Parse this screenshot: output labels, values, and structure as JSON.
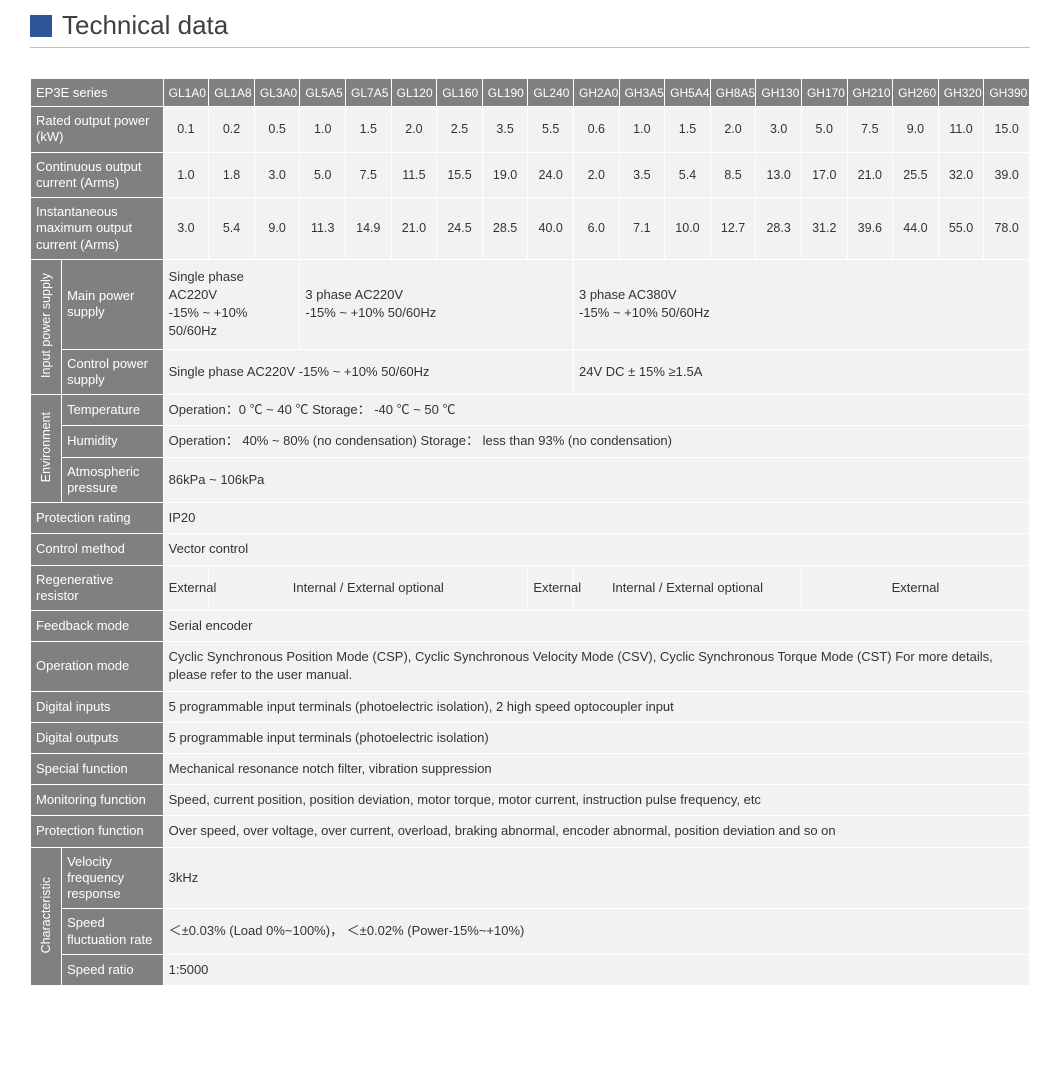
{
  "title": "Technical data",
  "series_label": "EP3E series",
  "models": [
    "GL1A0",
    "GL1A8",
    "GL3A0",
    "GL5A5",
    "GL7A5",
    "GL120",
    "GL160",
    "GL190",
    "GL240",
    "GH2A0",
    "GH3A5",
    "GH5A4",
    "GH8A5",
    "GH130",
    "GH170",
    "GH210",
    "GH260",
    "GH320",
    "GH390"
  ],
  "rows_numeric": [
    {
      "label": "Rated output power (kW)",
      "values": [
        "0.1",
        "0.2",
        "0.5",
        "1.0",
        "1.5",
        "2.0",
        "2.5",
        "3.5",
        "5.5",
        "0.6",
        "1.0",
        "1.5",
        "2.0",
        "3.0",
        "5.0",
        "7.5",
        "9.0",
        "11.0",
        "15.0"
      ]
    },
    {
      "label": "Continuous output current (Arms)",
      "values": [
        "1.0",
        "1.8",
        "3.0",
        "5.0",
        "7.5",
        "11.5",
        "15.5",
        "19.0",
        "24.0",
        "2.0",
        "3.5",
        "5.4",
        "8.5",
        "13.0",
        "17.0",
        "21.0",
        "25.5",
        "32.0",
        "39.0"
      ]
    },
    {
      "label": "Instantaneous maximum output current (Arms)",
      "values": [
        "3.0",
        "5.4",
        "9.0",
        "11.3",
        "14.9",
        "21.0",
        "24.5",
        "28.5",
        "40.0",
        "6.0",
        "7.1",
        "10.0",
        "12.7",
        "28.3",
        "31.2",
        "39.6",
        "44.0",
        "55.0",
        "78.0"
      ]
    }
  ],
  "input_power": {
    "group": "Input power supply",
    "main_label": "Main power supply",
    "main_a": "Single phase AC220V\n-15% ~ +10%\n50/60Hz",
    "main_b": "3 phase AC220V\n-15% ~ +10%  50/60Hz",
    "main_c": "3 phase AC380V\n-15% ~ +10%  50/60Hz",
    "ctrl_label": "Control power supply",
    "ctrl_a": "Single phase     AC220V   -15%  ~ +10%   50/60Hz",
    "ctrl_b": "24V DC    ± 15%   ≥1.5A"
  },
  "environment": {
    "group": "Environment",
    "temp_label": "Temperature",
    "temp_val": "Operation：0 ℃ ~ 40 ℃          Storage： -40 ℃ ~ 50 ℃",
    "humid_label": "Humidity",
    "humid_val": "Operation： 40%  ~ 80%  (no condensation)           Storage： less than 93% (no condensation)",
    "atm_label": "Atmospheric pressure",
    "atm_val": "86kPa  ~ 106kPa"
  },
  "simple_rows": {
    "protection_rating": {
      "label": "Protection rating",
      "value": "IP20"
    },
    "control_method": {
      "label": "Control method",
      "value": "Vector control"
    },
    "feedback_mode": {
      "label": "Feedback mode",
      "value": "Serial encoder"
    },
    "operation_mode": {
      "label": "Operation mode",
      "value": "Cyclic Synchronous Position Mode (CSP), Cyclic Synchronous Velocity Mode (CSV), Cyclic Synchronous Torque Mode (CST) For more details, please refer to  the user manual."
    },
    "digital_inputs": {
      "label": "Digital inputs",
      "value": "5 programmable input terminals (photoelectric isolation), 2 high speed optocoupler input"
    },
    "digital_outputs": {
      "label": "Digital outputs",
      "value": "5 programmable input terminals (photoelectric isolation)"
    },
    "special_function": {
      "label": "Special function",
      "value": "Mechanical resonance notch filter, vibration suppression"
    },
    "monitoring_function": {
      "label": "Monitoring function",
      "value": "Speed, current position, position deviation, motor torque, motor current, instruction pulse frequency, etc"
    },
    "protection_function": {
      "label": "Protection function",
      "value": "Over speed, over voltage, over current, overload, braking abnormal, encoder abnormal, position deviation and so on"
    }
  },
  "regen": {
    "label": "Regenerative resistor",
    "cells": [
      "External",
      "Internal / External optional",
      "External",
      "Internal / External optional",
      "External"
    ]
  },
  "characteristic": {
    "group": "Characteristic",
    "vfr_label": "Velocity frequency response",
    "vfr_val": "3kHz",
    "sfr_label": "Speed fluctuation rate",
    "sfr_val": "＜±0.03% (Load 0%~100%)， ＜±0.02% (Power-15%~+10%)",
    "ratio_label": "Speed ratio",
    "ratio_val": "1:5000"
  }
}
